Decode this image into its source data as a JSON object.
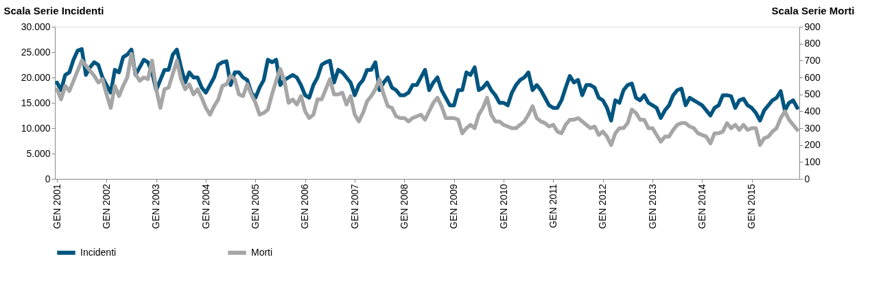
{
  "chart_data": {
    "type": "line",
    "ylabel": "Scala Serie Incidenti",
    "y2label": "Scala Serie Morti",
    "categories": [
      "GEN 2001",
      null,
      null,
      null,
      null,
      null,
      null,
      null,
      null,
      null,
      null,
      null,
      "GEN 2002",
      null,
      null,
      null,
      null,
      null,
      null,
      null,
      null,
      null,
      null,
      null,
      "GEN 2003",
      null,
      null,
      null,
      null,
      null,
      null,
      null,
      null,
      null,
      null,
      null,
      "GEN 2004",
      null,
      null,
      null,
      null,
      null,
      null,
      null,
      null,
      null,
      null,
      null,
      "GEN 2005",
      null,
      null,
      null,
      null,
      null,
      null,
      null,
      null,
      null,
      null,
      null,
      "GEN 2006",
      null,
      null,
      null,
      null,
      null,
      null,
      null,
      null,
      null,
      null,
      null,
      "GEN 2007",
      null,
      null,
      null,
      null,
      null,
      null,
      null,
      null,
      null,
      null,
      null,
      "GEN 2008",
      null,
      null,
      null,
      null,
      null,
      null,
      null,
      null,
      null,
      null,
      null,
      "GEN 2009",
      null,
      null,
      null,
      null,
      null,
      null,
      null,
      null,
      null,
      null,
      null,
      "GEN 2010",
      null,
      null,
      null,
      null,
      null,
      null,
      null,
      null,
      null,
      null,
      null,
      "GEN 2011",
      null,
      null,
      null,
      null,
      null,
      null,
      null,
      null,
      null,
      null,
      null,
      "GEN 2012",
      null,
      null,
      null,
      null,
      null,
      null,
      null,
      null,
      null,
      null,
      null,
      "GEN 2013",
      null,
      null,
      null,
      null,
      null,
      null,
      null,
      null,
      null,
      null,
      null,
      "GEN 2014",
      null,
      null,
      null,
      null,
      null,
      null,
      null,
      null,
      null,
      null,
      null,
      "GEN 2015",
      null,
      null,
      null,
      null,
      null,
      null,
      null,
      null,
      null,
      null,
      null
    ],
    "series": [
      {
        "name": "Incidenti",
        "color": "#00557f",
        "values": [
          19000,
          17500,
          20500,
          21000,
          23500,
          25300,
          25600,
          20500,
          22000,
          23000,
          22500,
          20000,
          18500,
          17000,
          21500,
          21000,
          24000,
          24500,
          25500,
          20500,
          22000,
          23500,
          23000,
          21000,
          17500,
          19500,
          21500,
          21500,
          24500,
          25500,
          22000,
          19000,
          21000,
          20000,
          20000,
          18000,
          17000,
          18500,
          20000,
          22500,
          23000,
          23200,
          18500,
          21000,
          21000,
          20000,
          19500,
          17000,
          16000,
          18000,
          19500,
          23500,
          23000,
          23500,
          18500,
          19500,
          20000,
          20500,
          20000,
          18500,
          16500,
          16000,
          18500,
          20000,
          22500,
          23000,
          23300,
          19000,
          21500,
          21000,
          20000,
          19000,
          16500,
          18500,
          19500,
          21500,
          21500,
          23000,
          17500,
          19000,
          20000,
          18000,
          17500,
          16500,
          16500,
          17000,
          18500,
          18500,
          20000,
          21500,
          17500,
          19000,
          20000,
          17500,
          16000,
          14500,
          14500,
          17500,
          17500,
          21000,
          20500,
          22000,
          17500,
          18000,
          19000,
          17500,
          16500,
          15000,
          15000,
          14500,
          17000,
          18500,
          19500,
          20000,
          21000,
          17500,
          18500,
          17500,
          16000,
          14500,
          14000,
          14000,
          15500,
          18000,
          20300,
          19000,
          19500,
          16500,
          18500,
          18500,
          18000,
          16000,
          15500,
          14000,
          11500,
          15500,
          15000,
          17500,
          18500,
          18800,
          16000,
          15500,
          16500,
          15000,
          14500,
          14000,
          12000,
          13500,
          14500,
          16500,
          17500,
          17800,
          14500,
          16000,
          15500,
          15000,
          14500,
          13500,
          12500,
          14000,
          14500,
          16500,
          16500,
          16300,
          14000,
          15500,
          15800,
          14500,
          14000,
          13000,
          11500,
          13500,
          14500,
          15500,
          16000,
          17300,
          13500,
          15000,
          15500,
          14000
        ]
      },
      {
        "name": "Morti",
        "color": "#a6a6a6",
        "axis": "y2",
        "values": [
          530,
          470,
          550,
          520,
          580,
          640,
          700,
          670,
          640,
          610,
          570,
          590,
          500,
          420,
          550,
          490,
          550,
          600,
          740,
          620,
          580,
          600,
          590,
          700,
          530,
          420,
          530,
          540,
          620,
          700,
          590,
          530,
          560,
          500,
          530,
          480,
          420,
          380,
          430,
          470,
          550,
          560,
          610,
          590,
          500,
          490,
          560,
          500,
          450,
          380,
          390,
          410,
          500,
          580,
          650,
          580,
          450,
          470,
          440,
          490,
          400,
          360,
          380,
          470,
          470,
          530,
          590,
          500,
          500,
          510,
          440,
          490,
          380,
          340,
          390,
          460,
          490,
          530,
          590,
          500,
          430,
          420,
          370,
          360,
          360,
          340,
          360,
          370,
          380,
          350,
          400,
          450,
          480,
          430,
          360,
          360,
          360,
          350,
          270,
          300,
          320,
          300,
          380,
          420,
          480,
          380,
          340,
          340,
          320,
          310,
          300,
          300,
          320,
          340,
          380,
          430,
          360,
          340,
          330,
          310,
          320,
          280,
          270,
          320,
          350,
          350,
          360,
          340,
          320,
          300,
          310,
          260,
          280,
          250,
          200,
          270,
          300,
          300,
          330,
          410,
          390,
          350,
          350,
          300,
          300,
          260,
          220,
          250,
          250,
          290,
          320,
          330,
          330,
          310,
          300,
          270,
          260,
          250,
          210,
          270,
          270,
          280,
          330,
          300,
          320,
          290,
          320,
          290,
          300,
          300,
          200,
          240,
          250,
          280,
          300,
          360,
          400,
          350,
          320,
          290
        ]
      }
    ],
    "ylim": [
      0,
      30000
    ],
    "yticks": [
      0,
      {
        "value": 5000,
        "label": "5.000"
      },
      {
        "value": 10000,
        "label": "10.000"
      },
      {
        "value": 15000,
        "label": "15.000"
      },
      {
        "value": 20000,
        "label": "20.000"
      },
      {
        "value": 25000,
        "label": "25.000"
      },
      {
        "value": 30000,
        "label": "30.000"
      }
    ],
    "y2lim": [
      0,
      900
    ],
    "y2ticks": [
      0,
      100,
      200,
      300,
      400,
      500,
      600,
      700,
      800,
      900
    ],
    "grid": false,
    "legend": "bottom",
    "marker": "none",
    "line_style": "solid"
  }
}
